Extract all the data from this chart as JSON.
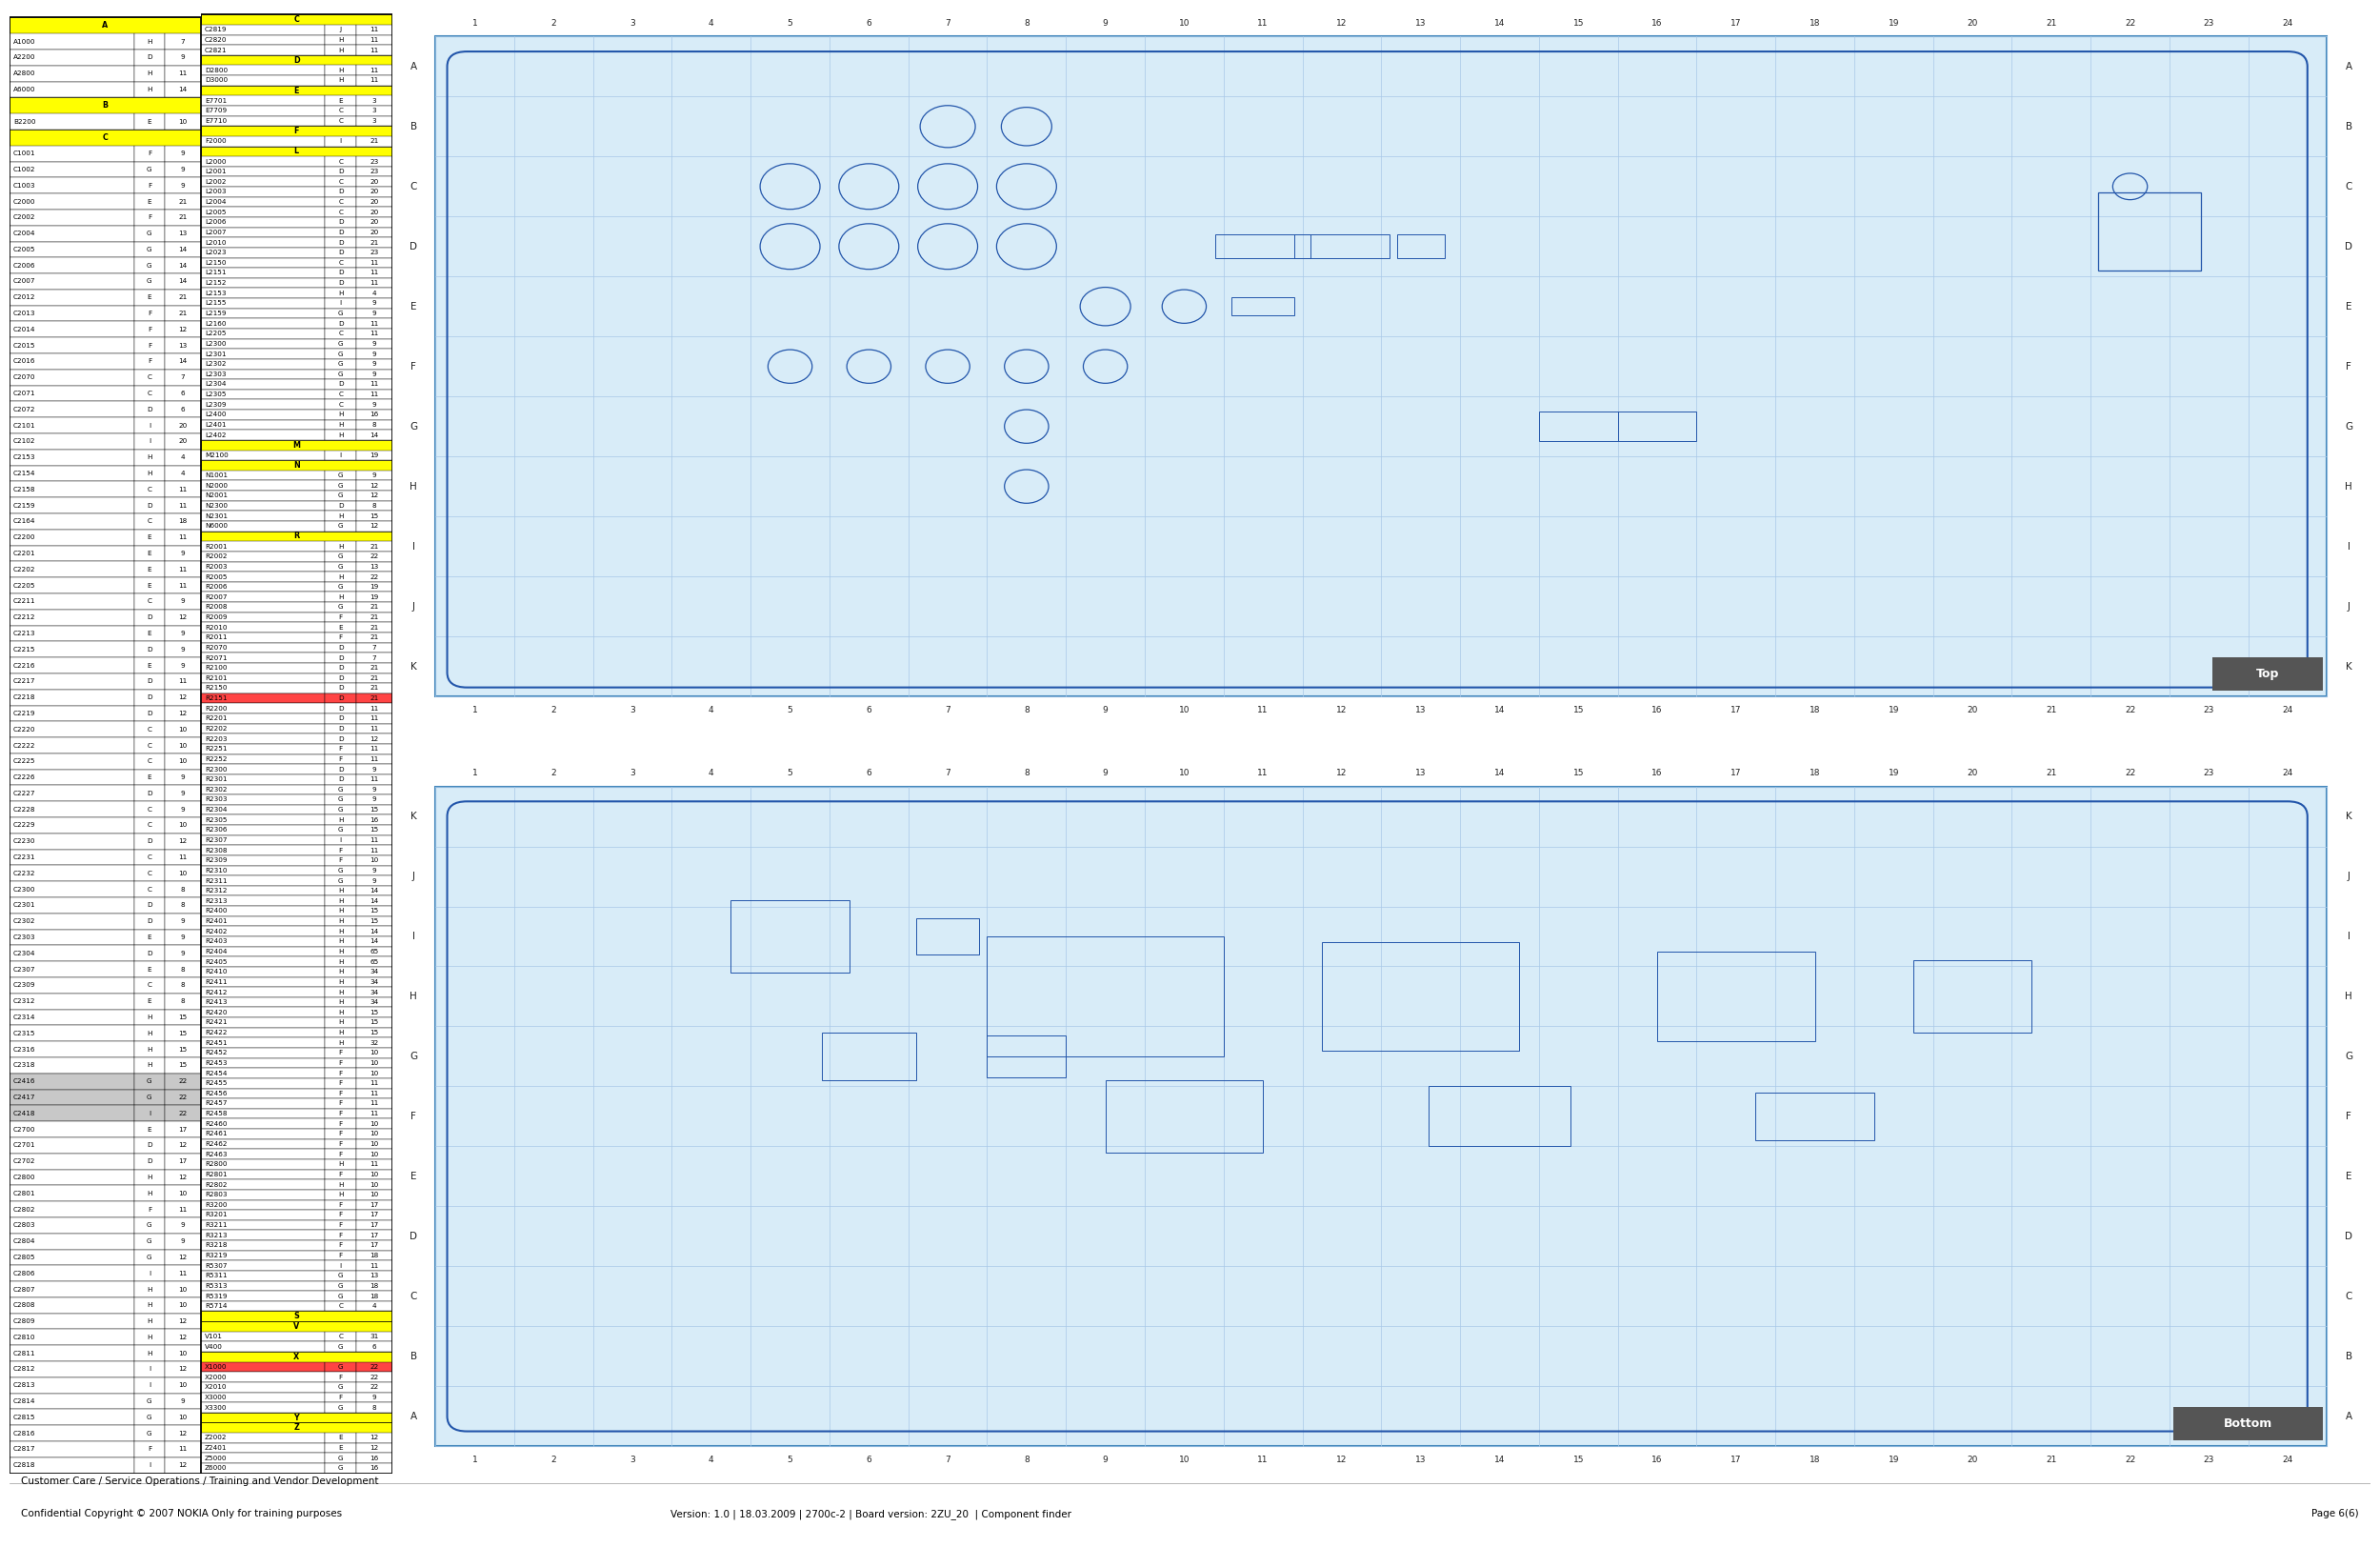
{
  "title_line1": "Customer Care / Service Operations / Training and Vendor Development",
  "title_line2": "Confidential Copyright © 2007 NOKIA Only for training purposes",
  "version_info": "Version: 1.0 | 18.03.2009 | 2700c-2 | Board version: 2ZU_20  | Component finder",
  "page_info": "Page 6(6)",
  "bg_color": "#ffffff",
  "grid_color": "#a8c8e8",
  "table_border_color": "#000000",
  "table_header_bg": "#ffff00",
  "table_row_bg_white": "#ffffff",
  "table_row_bg_gray": "#c8c8c8",
  "table_row_bg_yellow": "#ffff00",
  "table_row_bg_green": "#90ee90",
  "table_row_bg_red": "#ff4444",
  "schematic_bg": "#d8ecf8",
  "schematic_border": "#4488bb",
  "top_label_bg": "#555555",
  "top_label_text": "#ffffff",
  "bottom_label_bg": "#555555",
  "bottom_label_text": "#ffffff",
  "left_table": [
    [
      "A",
      null,
      null,
      "header"
    ],
    [
      "A1000",
      "H",
      "7",
      "normal"
    ],
    [
      "A2200",
      "D",
      "9",
      "normal"
    ],
    [
      "A2800",
      "H",
      "11",
      "normal"
    ],
    [
      "A6000",
      "H",
      "14",
      "normal"
    ],
    [
      "B",
      null,
      null,
      "header"
    ],
    [
      "B2200",
      "E",
      "10",
      "normal"
    ],
    [
      "C",
      null,
      null,
      "header"
    ],
    [
      "C1001",
      "F",
      "9",
      "normal"
    ],
    [
      "C1002",
      "G",
      "9",
      "normal"
    ],
    [
      "C1003",
      "F",
      "9",
      "normal"
    ],
    [
      "C2000",
      "E",
      "21",
      "normal"
    ],
    [
      "C2002",
      "F",
      "21",
      "normal"
    ],
    [
      "C2004",
      "G",
      "13",
      "normal"
    ],
    [
      "C2005",
      "G",
      "14",
      "normal"
    ],
    [
      "C2006",
      "G",
      "14",
      "normal"
    ],
    [
      "C2007",
      "G",
      "14",
      "normal"
    ],
    [
      "C2012",
      "E",
      "21",
      "normal"
    ],
    [
      "C2013",
      "F",
      "21",
      "normal"
    ],
    [
      "C2014",
      "F",
      "12",
      "normal"
    ],
    [
      "C2015",
      "F",
      "13",
      "normal"
    ],
    [
      "C2016",
      "F",
      "14",
      "normal"
    ],
    [
      "C2070",
      "C",
      "7",
      "normal"
    ],
    [
      "C2071",
      "C",
      "6",
      "normal"
    ],
    [
      "C2072",
      "D",
      "6",
      "normal"
    ],
    [
      "C2101",
      "I",
      "20",
      "normal"
    ],
    [
      "C2102",
      "I",
      "20",
      "normal"
    ],
    [
      "C2153",
      "H",
      "4",
      "normal"
    ],
    [
      "C2154",
      "H",
      "4",
      "normal"
    ],
    [
      "C2158",
      "C",
      "11",
      "normal"
    ],
    [
      "C2159",
      "D",
      "11",
      "normal"
    ],
    [
      "C2164",
      "C",
      "18",
      "normal"
    ],
    [
      "C2200",
      "E",
      "11",
      "normal"
    ],
    [
      "C2201",
      "E",
      "9",
      "normal"
    ],
    [
      "C2202",
      "E",
      "11",
      "normal"
    ],
    [
      "C2205",
      "E",
      "11",
      "normal"
    ],
    [
      "C2211",
      "C",
      "9",
      "normal"
    ],
    [
      "C2212",
      "D",
      "12",
      "normal"
    ],
    [
      "C2213",
      "E",
      "9",
      "normal"
    ],
    [
      "C2215",
      "D",
      "9",
      "normal"
    ],
    [
      "C2216",
      "E",
      "9",
      "normal"
    ],
    [
      "C2217",
      "D",
      "11",
      "normal"
    ],
    [
      "C2218",
      "D",
      "12",
      "normal"
    ],
    [
      "C2219",
      "D",
      "12",
      "normal"
    ],
    [
      "C2220",
      "C",
      "10",
      "normal"
    ],
    [
      "C2222",
      "C",
      "10",
      "normal"
    ],
    [
      "C2225",
      "C",
      "10",
      "normal"
    ],
    [
      "C2226",
      "E",
      "9",
      "normal"
    ],
    [
      "C2227",
      "D",
      "9",
      "normal"
    ],
    [
      "C2228",
      "C",
      "9",
      "normal"
    ],
    [
      "C2229",
      "C",
      "10",
      "normal"
    ],
    [
      "C2230",
      "D",
      "12",
      "normal"
    ],
    [
      "C2231",
      "C",
      "11",
      "normal"
    ],
    [
      "C2232",
      "C",
      "10",
      "normal"
    ],
    [
      "C2300",
      "C",
      "8",
      "normal"
    ],
    [
      "C2301",
      "D",
      "8",
      "normal"
    ],
    [
      "C2302",
      "D",
      "9",
      "normal"
    ],
    [
      "C2303",
      "E",
      "9",
      "normal"
    ],
    [
      "C2304",
      "D",
      "9",
      "normal"
    ],
    [
      "C2307",
      "E",
      "8",
      "normal"
    ],
    [
      "C2309",
      "C",
      "8",
      "normal"
    ],
    [
      "C2312",
      "E",
      "8",
      "normal"
    ],
    [
      "C2314",
      "H",
      "15",
      "normal"
    ],
    [
      "C2315",
      "H",
      "15",
      "normal"
    ],
    [
      "C2316",
      "H",
      "15",
      "normal"
    ],
    [
      "C2318",
      "H",
      "15",
      "normal"
    ],
    [
      "C2416",
      "G",
      "22",
      "gray"
    ],
    [
      "C2417",
      "G",
      "22",
      "gray"
    ],
    [
      "C2418",
      "I",
      "22",
      "gray"
    ],
    [
      "C2700",
      "E",
      "17",
      "normal"
    ],
    [
      "C2701",
      "D",
      "12",
      "normal"
    ],
    [
      "C2702",
      "D",
      "17",
      "normal"
    ],
    [
      "C2800",
      "H",
      "12",
      "normal"
    ],
    [
      "C2801",
      "H",
      "10",
      "normal"
    ],
    [
      "C2802",
      "F",
      "11",
      "normal"
    ],
    [
      "C2803",
      "G",
      "9",
      "normal"
    ],
    [
      "C2804",
      "G",
      "9",
      "normal"
    ],
    [
      "C2805",
      "G",
      "12",
      "normal"
    ],
    [
      "C2806",
      "I",
      "11",
      "normal"
    ],
    [
      "C2807",
      "H",
      "10",
      "normal"
    ],
    [
      "C2808",
      "H",
      "10",
      "normal"
    ],
    [
      "C2809",
      "H",
      "12",
      "normal"
    ],
    [
      "C2810",
      "H",
      "12",
      "normal"
    ],
    [
      "C2811",
      "H",
      "10",
      "normal"
    ],
    [
      "C2812",
      "I",
      "12",
      "normal"
    ],
    [
      "C2813",
      "I",
      "10",
      "normal"
    ],
    [
      "C2814",
      "G",
      "9",
      "normal"
    ],
    [
      "C2815",
      "G",
      "10",
      "normal"
    ],
    [
      "C2816",
      "G",
      "12",
      "normal"
    ],
    [
      "C2817",
      "F",
      "11",
      "normal"
    ],
    [
      "C2818",
      "I",
      "12",
      "normal"
    ]
  ],
  "right_table": [
    [
      "C",
      null,
      null,
      "header"
    ],
    [
      "C2819",
      "J",
      "11",
      "normal"
    ],
    [
      "C2820",
      "H",
      "11",
      "normal"
    ],
    [
      "C2821",
      "H",
      "11",
      "normal"
    ],
    [
      "D",
      null,
      null,
      "header"
    ],
    [
      "D2800",
      "H",
      "11",
      "normal"
    ],
    [
      "D3000",
      "H",
      "11",
      "normal"
    ],
    [
      "E",
      null,
      null,
      "header"
    ],
    [
      "E7701",
      "E",
      "3",
      "normal"
    ],
    [
      "E7709",
      "C",
      "3",
      "normal"
    ],
    [
      "E7710",
      "C",
      "3",
      "normal"
    ],
    [
      "F",
      null,
      null,
      "header"
    ],
    [
      "F2000",
      "I",
      "21",
      "normal"
    ],
    [
      "L",
      null,
      null,
      "header"
    ],
    [
      "L2000",
      "C",
      "23",
      "normal"
    ],
    [
      "L2001",
      "D",
      "23",
      "normal"
    ],
    [
      "L2002",
      "C",
      "20",
      "normal"
    ],
    [
      "L2003",
      "D",
      "20",
      "normal"
    ],
    [
      "L2004",
      "C",
      "20",
      "normal"
    ],
    [
      "L2005",
      "C",
      "20",
      "normal"
    ],
    [
      "L2006",
      "D",
      "20",
      "normal"
    ],
    [
      "L2007",
      "D",
      "20",
      "normal"
    ],
    [
      "L2010",
      "D",
      "21",
      "normal"
    ],
    [
      "L2023",
      "D",
      "23",
      "normal"
    ],
    [
      "L2150",
      "C",
      "11",
      "normal"
    ],
    [
      "L2151",
      "D",
      "11",
      "normal"
    ],
    [
      "L2152",
      "D",
      "11",
      "normal"
    ],
    [
      "L2153",
      "H",
      "4",
      "normal"
    ],
    [
      "L2155",
      "I",
      "9",
      "normal"
    ],
    [
      "L2159",
      "G",
      "9",
      "normal"
    ],
    [
      "L2160",
      "D",
      "11",
      "normal"
    ],
    [
      "L2205",
      "C",
      "11",
      "normal"
    ],
    [
      "L2300",
      "G",
      "9",
      "normal"
    ],
    [
      "L2301",
      "G",
      "9",
      "normal"
    ],
    [
      "L2302",
      "G",
      "9",
      "normal"
    ],
    [
      "L2303",
      "G",
      "9",
      "normal"
    ],
    [
      "L2304",
      "D",
      "11",
      "normal"
    ],
    [
      "L2305",
      "C",
      "11",
      "normal"
    ],
    [
      "L2309",
      "C",
      "9",
      "normal"
    ],
    [
      "L2400",
      "H",
      "16",
      "normal"
    ],
    [
      "L2401",
      "H",
      "8",
      "normal"
    ],
    [
      "L2402",
      "H",
      "14",
      "normal"
    ],
    [
      "M",
      null,
      null,
      "header"
    ],
    [
      "M2100",
      "I",
      "19",
      "normal"
    ],
    [
      "N",
      null,
      null,
      "header"
    ],
    [
      "N1001",
      "G",
      "9",
      "normal"
    ],
    [
      "N2000",
      "G",
      "12",
      "normal"
    ],
    [
      "N2001",
      "G",
      "12",
      "normal"
    ],
    [
      "N2300",
      "D",
      "8",
      "normal"
    ],
    [
      "N2301",
      "H",
      "15",
      "normal"
    ],
    [
      "N6000",
      "G",
      "12",
      "normal"
    ],
    [
      "R",
      null,
      null,
      "header"
    ],
    [
      "R2001",
      "H",
      "21",
      "normal"
    ],
    [
      "R2002",
      "G",
      "22",
      "normal"
    ],
    [
      "R2003",
      "G",
      "13",
      "normal"
    ],
    [
      "R2005",
      "H",
      "22",
      "normal"
    ],
    [
      "R2006",
      "G",
      "19",
      "normal"
    ],
    [
      "R2007",
      "H",
      "19",
      "normal"
    ],
    [
      "R2008",
      "G",
      "21",
      "normal"
    ],
    [
      "R2009",
      "F",
      "21",
      "normal"
    ],
    [
      "R2010",
      "E",
      "21",
      "normal"
    ],
    [
      "R2011",
      "F",
      "21",
      "normal"
    ],
    [
      "R2070",
      "D",
      "7",
      "normal"
    ],
    [
      "R2071",
      "D",
      "7",
      "normal"
    ],
    [
      "R2100",
      "D",
      "21",
      "normal"
    ],
    [
      "R2101",
      "D",
      "21",
      "normal"
    ],
    [
      "R2150",
      "D",
      "21",
      "normal"
    ],
    [
      "R2151",
      "D",
      "21",
      "red"
    ],
    [
      "R2200",
      "D",
      "11",
      "normal"
    ],
    [
      "R2201",
      "D",
      "11",
      "normal"
    ],
    [
      "R2202",
      "D",
      "11",
      "normal"
    ],
    [
      "R2203",
      "D",
      "12",
      "normal"
    ],
    [
      "R2251",
      "F",
      "11",
      "normal"
    ],
    [
      "R2252",
      "F",
      "11",
      "normal"
    ],
    [
      "R2300",
      "D",
      "9",
      "normal"
    ],
    [
      "R2301",
      "D",
      "11",
      "normal"
    ],
    [
      "R2302",
      "G",
      "9",
      "normal"
    ],
    [
      "R2303",
      "G",
      "9",
      "normal"
    ],
    [
      "R2304",
      "G",
      "15",
      "normal"
    ],
    [
      "R2305",
      "H",
      "16",
      "normal"
    ],
    [
      "R2306",
      "G",
      "15",
      "normal"
    ],
    [
      "R2307",
      "I",
      "11",
      "normal"
    ],
    [
      "R2308",
      "F",
      "11",
      "normal"
    ],
    [
      "R2309",
      "F",
      "10",
      "normal"
    ],
    [
      "R2310",
      "G",
      "9",
      "normal"
    ],
    [
      "R2311",
      "G",
      "9",
      "normal"
    ],
    [
      "R2312",
      "H",
      "14",
      "normal"
    ],
    [
      "R2313",
      "H",
      "14",
      "normal"
    ],
    [
      "R2400",
      "H",
      "15",
      "normal"
    ],
    [
      "R2401",
      "H",
      "15",
      "normal"
    ],
    [
      "R2402",
      "H",
      "14",
      "normal"
    ],
    [
      "R2403",
      "H",
      "14",
      "normal"
    ],
    [
      "R2404",
      "H",
      "65",
      "normal"
    ],
    [
      "R2405",
      "H",
      "65",
      "normal"
    ],
    [
      "R2410",
      "H",
      "34",
      "normal"
    ],
    [
      "R2411",
      "H",
      "34",
      "normal"
    ],
    [
      "R2412",
      "H",
      "34",
      "normal"
    ],
    [
      "R2413",
      "H",
      "34",
      "normal"
    ],
    [
      "R2420",
      "H",
      "15",
      "normal"
    ],
    [
      "R2421",
      "H",
      "15",
      "normal"
    ],
    [
      "R2422",
      "H",
      "15",
      "normal"
    ],
    [
      "R2451",
      "H",
      "32",
      "normal"
    ],
    [
      "R2452",
      "F",
      "10",
      "normal"
    ],
    [
      "R2453",
      "F",
      "10",
      "normal"
    ],
    [
      "R2454",
      "F",
      "10",
      "normal"
    ],
    [
      "R2455",
      "F",
      "11",
      "normal"
    ],
    [
      "R2456",
      "F",
      "11",
      "normal"
    ],
    [
      "R2457",
      "F",
      "11",
      "normal"
    ],
    [
      "R2458",
      "F",
      "11",
      "normal"
    ],
    [
      "R2460",
      "F",
      "10",
      "normal"
    ],
    [
      "R2461",
      "F",
      "10",
      "normal"
    ],
    [
      "R2462",
      "F",
      "10",
      "normal"
    ],
    [
      "R2463",
      "F",
      "10",
      "normal"
    ],
    [
      "R2800",
      "H",
      "11",
      "normal"
    ],
    [
      "R2801",
      "F",
      "10",
      "normal"
    ],
    [
      "R2802",
      "H",
      "10",
      "normal"
    ],
    [
      "R2803",
      "H",
      "10",
      "normal"
    ],
    [
      "R3200",
      "F",
      "17",
      "normal"
    ],
    [
      "R3201",
      "F",
      "17",
      "normal"
    ],
    [
      "R3211",
      "F",
      "17",
      "normal"
    ],
    [
      "R3213",
      "F",
      "17",
      "normal"
    ],
    [
      "R3218",
      "F",
      "17",
      "normal"
    ],
    [
      "R3219",
      "F",
      "18",
      "normal"
    ],
    [
      "R5307",
      "I",
      "11",
      "normal"
    ],
    [
      "R5311",
      "G",
      "13",
      "normal"
    ],
    [
      "R5313",
      "G",
      "18",
      "normal"
    ],
    [
      "R5319",
      "G",
      "18",
      "normal"
    ],
    [
      "R5714",
      "C",
      "4",
      "normal"
    ],
    [
      "S",
      null,
      null,
      "header"
    ],
    [
      "V",
      null,
      null,
      "header"
    ],
    [
      "V101",
      "C",
      "31",
      "normal"
    ],
    [
      "V400",
      "G",
      "6",
      "normal"
    ],
    [
      "X",
      null,
      null,
      "header"
    ],
    [
      "X1000",
      "G",
      "22",
      "red"
    ],
    [
      "X2000",
      "F",
      "22",
      "normal"
    ],
    [
      "X2010",
      "G",
      "22",
      "normal"
    ],
    [
      "X3000",
      "F",
      "9",
      "normal"
    ],
    [
      "X3300",
      "G",
      "8",
      "normal"
    ],
    [
      "Y",
      null,
      null,
      "header"
    ],
    [
      "Z",
      null,
      null,
      "header"
    ],
    [
      "Z2002",
      "E",
      "12",
      "normal"
    ],
    [
      "Z2401",
      "E",
      "12",
      "normal"
    ],
    [
      "Z5000",
      "G",
      "16",
      "normal"
    ],
    [
      "Z6000",
      "G",
      "16",
      "normal"
    ]
  ],
  "row_labels_top": [
    "A",
    "B",
    "C",
    "D",
    "E",
    "F",
    "G",
    "H",
    "I",
    "J",
    "K"
  ],
  "row_labels_bot": [
    "K",
    "J",
    "I",
    "H",
    "G",
    "F",
    "E",
    "D",
    "C",
    "B",
    "A"
  ],
  "col_numbers": [
    1,
    2,
    3,
    4,
    5,
    6,
    7,
    8,
    9,
    10,
    11,
    12,
    13,
    14,
    15,
    16,
    17,
    18,
    19,
    20,
    21,
    22,
    23,
    24
  ]
}
